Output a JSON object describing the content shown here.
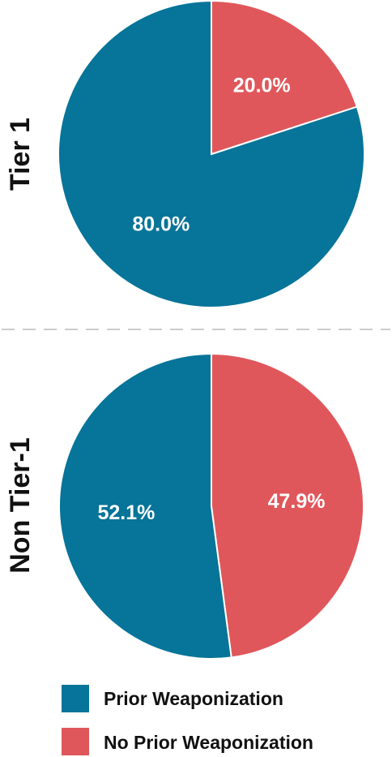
{
  "colors": {
    "prior": "#077499",
    "no_prior": "#e0575b",
    "divider": "#cccccc",
    "slice_border": "#ffffff"
  },
  "chart_data": [
    {
      "type": "pie",
      "row_label": "Tier 1",
      "slices": [
        {
          "series": "Prior Weaponization",
          "value": 80.0,
          "label": "80.0%"
        },
        {
          "series": "No Prior Weaponization",
          "value": 20.0,
          "label": "20.0%"
        }
      ]
    },
    {
      "type": "pie",
      "row_label": "Non Tier-1",
      "slices": [
        {
          "series": "Prior Weaponization",
          "value": 52.1,
          "label": "52.1%"
        },
        {
          "series": "No Prior Weaponization",
          "value": 47.9,
          "label": "47.9%"
        }
      ]
    }
  ],
  "legend": {
    "position": "bottom-left",
    "items": [
      {
        "label": "Prior Weaponization",
        "color_key": "prior"
      },
      {
        "label": "No Prior Weaponization",
        "color_key": "no_prior"
      }
    ]
  }
}
